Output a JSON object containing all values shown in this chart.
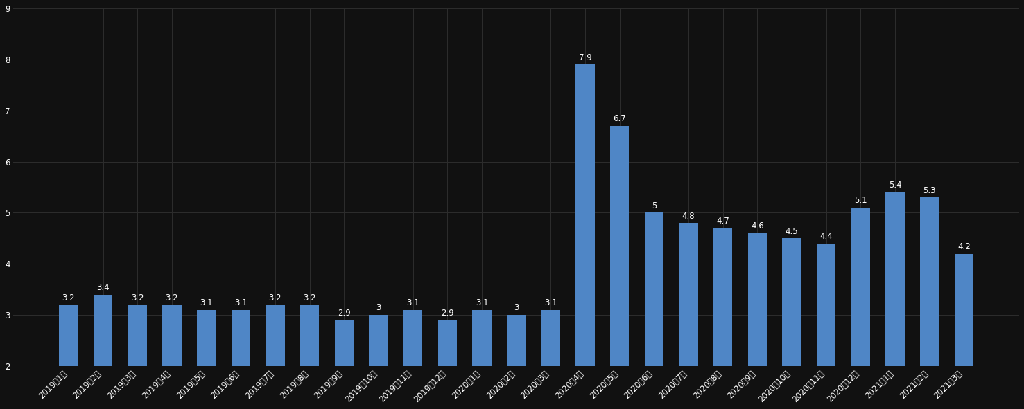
{
  "categories": [
    "2019年1月",
    "2019年2月",
    "2019年3月",
    "2019年4月",
    "2019年5月",
    "2019年6月",
    "2019年7月",
    "2019年8月",
    "2019年9月",
    "2019年10月",
    "2019年11月",
    "2019年12月",
    "2020年1月",
    "2020年2月",
    "2020年3月",
    "2020年4月",
    "2020年5月",
    "2020年6月",
    "2020年7月",
    "2020年8月",
    "2020年9月",
    "2020年10月",
    "2020年11月",
    "2020年12月",
    "2021年1月",
    "2021年2月",
    "2021年3月"
  ],
  "values": [
    3.2,
    3.4,
    3.2,
    3.2,
    3.1,
    3.1,
    3.2,
    3.2,
    2.9,
    3.0,
    3.1,
    2.9,
    3.1,
    3.0,
    3.1,
    7.9,
    6.7,
    5.0,
    4.8,
    4.7,
    4.6,
    4.5,
    4.4,
    5.1,
    5.4,
    5.3,
    4.2
  ],
  "bar_color": "#4f86c6",
  "background_color": "#111111",
  "text_color": "#ffffff",
  "grid_color": "#2d2d2d",
  "ylim_min": 2,
  "ylim_max": 9,
  "yticks": [
    2,
    3,
    4,
    5,
    6,
    7,
    8,
    9
  ],
  "value_fontsize": 8.5,
  "tick_fontsize": 8.5,
  "bar_width": 0.55
}
